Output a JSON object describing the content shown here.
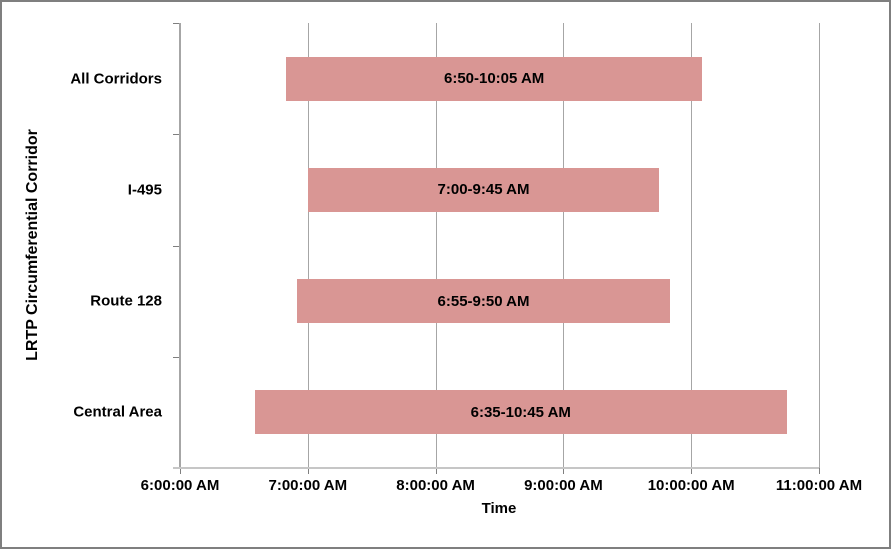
{
  "window": {
    "background": "#ffffff",
    "border_color": "#7f7f7f"
  },
  "chart_data": {
    "type": "bar",
    "orientation": "horizontal",
    "title": "",
    "xlabel": "Time",
    "ylabel": "LRTP Circumferential Corridor",
    "legend": "none",
    "grid": "vertical-major",
    "x_axis": {
      "range_hours": [
        6,
        11
      ],
      "tick_hours": [
        6,
        7,
        8,
        9,
        10,
        11
      ],
      "tick_labels": [
        "6:00:00 AM",
        "7:00:00 AM",
        "8:00:00 AM",
        "9:00:00 AM",
        "10:00:00 AM",
        "11:00:00 AM"
      ]
    },
    "categories": [
      "All Corridors",
      "I-495",
      "Route 128",
      "Central Area"
    ],
    "bars": [
      {
        "category": "All Corridors",
        "start_hour": 6.8333,
        "end_hour": 10.0833,
        "label": "6:50-10:05 AM"
      },
      {
        "category": "I-495",
        "start_hour": 7.0,
        "end_hour": 9.75,
        "label": "7:00-9:45 AM"
      },
      {
        "category": "Route 128",
        "start_hour": 6.9167,
        "end_hour": 9.8333,
        "label": "6:55-9:50 AM"
      },
      {
        "category": "Central Area",
        "start_hour": 6.5833,
        "end_hour": 10.75,
        "label": "6:35-10:45 AM"
      }
    ],
    "colors": {
      "bar_fill": "#d99694",
      "bar_label_text": "#000000",
      "gridline": "#a6a6a6",
      "axis_line": "#a6a6a6",
      "tick_mark": "#7f7f7f",
      "text": "#000000"
    }
  }
}
